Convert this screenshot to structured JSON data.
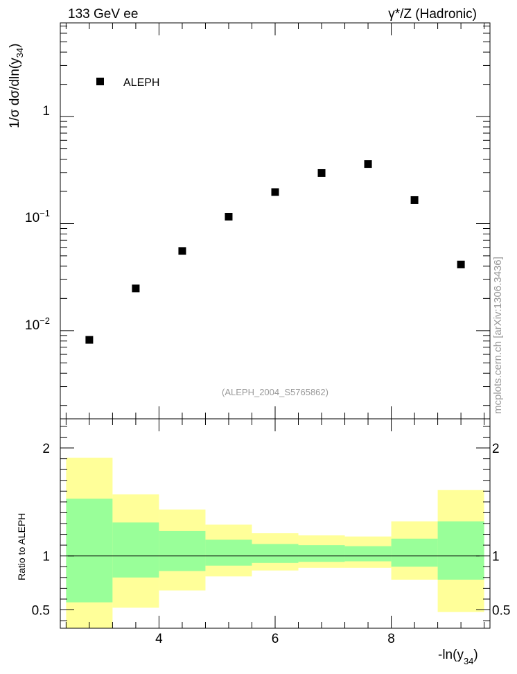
{
  "header": {
    "left": "133 GeV ee",
    "right": "γ*/Z (Hadronic)"
  },
  "watermark": "mcplots.cern.ch [arXiv:1306.3436]",
  "analysis_tag": "(ALEPH_2004_S5765862)",
  "chart_data": [
    {
      "type": "scatter",
      "panel": "main",
      "xlabel": "-ln(y34)",
      "ylabel": "1/σ dσ/dln(y34)",
      "yscale": "log",
      "xlim": [
        2.3,
        9.7
      ],
      "ylim": [
        0.0015,
        7.5
      ],
      "legend": {
        "position": "top-left",
        "entries": [
          "ALEPH"
        ]
      },
      "y_tick_labels": [
        "10^-2",
        "10^-1",
        "1"
      ],
      "series": [
        {
          "name": "ALEPH",
          "marker": "filled-square",
          "color": "#000000",
          "x": [
            2.8,
            3.6,
            4.4,
            5.2,
            6.0,
            6.8,
            7.6,
            8.4,
            9.2
          ],
          "y": [
            0.0082,
            0.0248,
            0.0555,
            0.116,
            0.197,
            0.297,
            0.36,
            0.166,
            0.0415
          ]
        }
      ]
    },
    {
      "type": "area",
      "panel": "ratio",
      "xlabel": "-ln(y34)",
      "ylabel": "Ratio to ALEPH",
      "xlim": [
        2.3,
        9.7
      ],
      "ylim": [
        0.33,
        2.27
      ],
      "x_ticks": [
        4,
        6,
        8
      ],
      "y_ticks": [
        0.5,
        1,
        2
      ],
      "reference_line": 1,
      "bins": [
        {
          "lo": 2.4,
          "hi": 3.2,
          "stat": [
            0.57,
            1.53
          ],
          "total": [
            0.33,
            1.91
          ]
        },
        {
          "lo": 3.2,
          "hi": 4.0,
          "stat": [
            0.8,
            1.31
          ],
          "total": [
            0.52,
            1.57
          ]
        },
        {
          "lo": 4.0,
          "hi": 4.8,
          "stat": [
            0.86,
            1.23
          ],
          "total": [
            0.68,
            1.43
          ]
        },
        {
          "lo": 4.8,
          "hi": 5.6,
          "stat": [
            0.91,
            1.15
          ],
          "total": [
            0.81,
            1.29
          ]
        },
        {
          "lo": 5.6,
          "hi": 6.4,
          "stat": [
            0.935,
            1.11
          ],
          "total": [
            0.865,
            1.21
          ]
        },
        {
          "lo": 6.4,
          "hi": 7.2,
          "stat": [
            0.945,
            1.1
          ],
          "total": [
            0.89,
            1.19
          ]
        },
        {
          "lo": 7.2,
          "hi": 8.0,
          "stat": [
            0.95,
            1.09
          ],
          "total": [
            0.89,
            1.18
          ]
        },
        {
          "lo": 8.0,
          "hi": 8.8,
          "stat": [
            0.9,
            1.16
          ],
          "total": [
            0.78,
            1.32
          ]
        },
        {
          "lo": 8.8,
          "hi": 9.6,
          "stat": [
            0.78,
            1.32
          ],
          "total": [
            0.48,
            1.61
          ]
        }
      ],
      "colors": {
        "stat": "#99ff99",
        "total": "#ffff99"
      }
    }
  ]
}
